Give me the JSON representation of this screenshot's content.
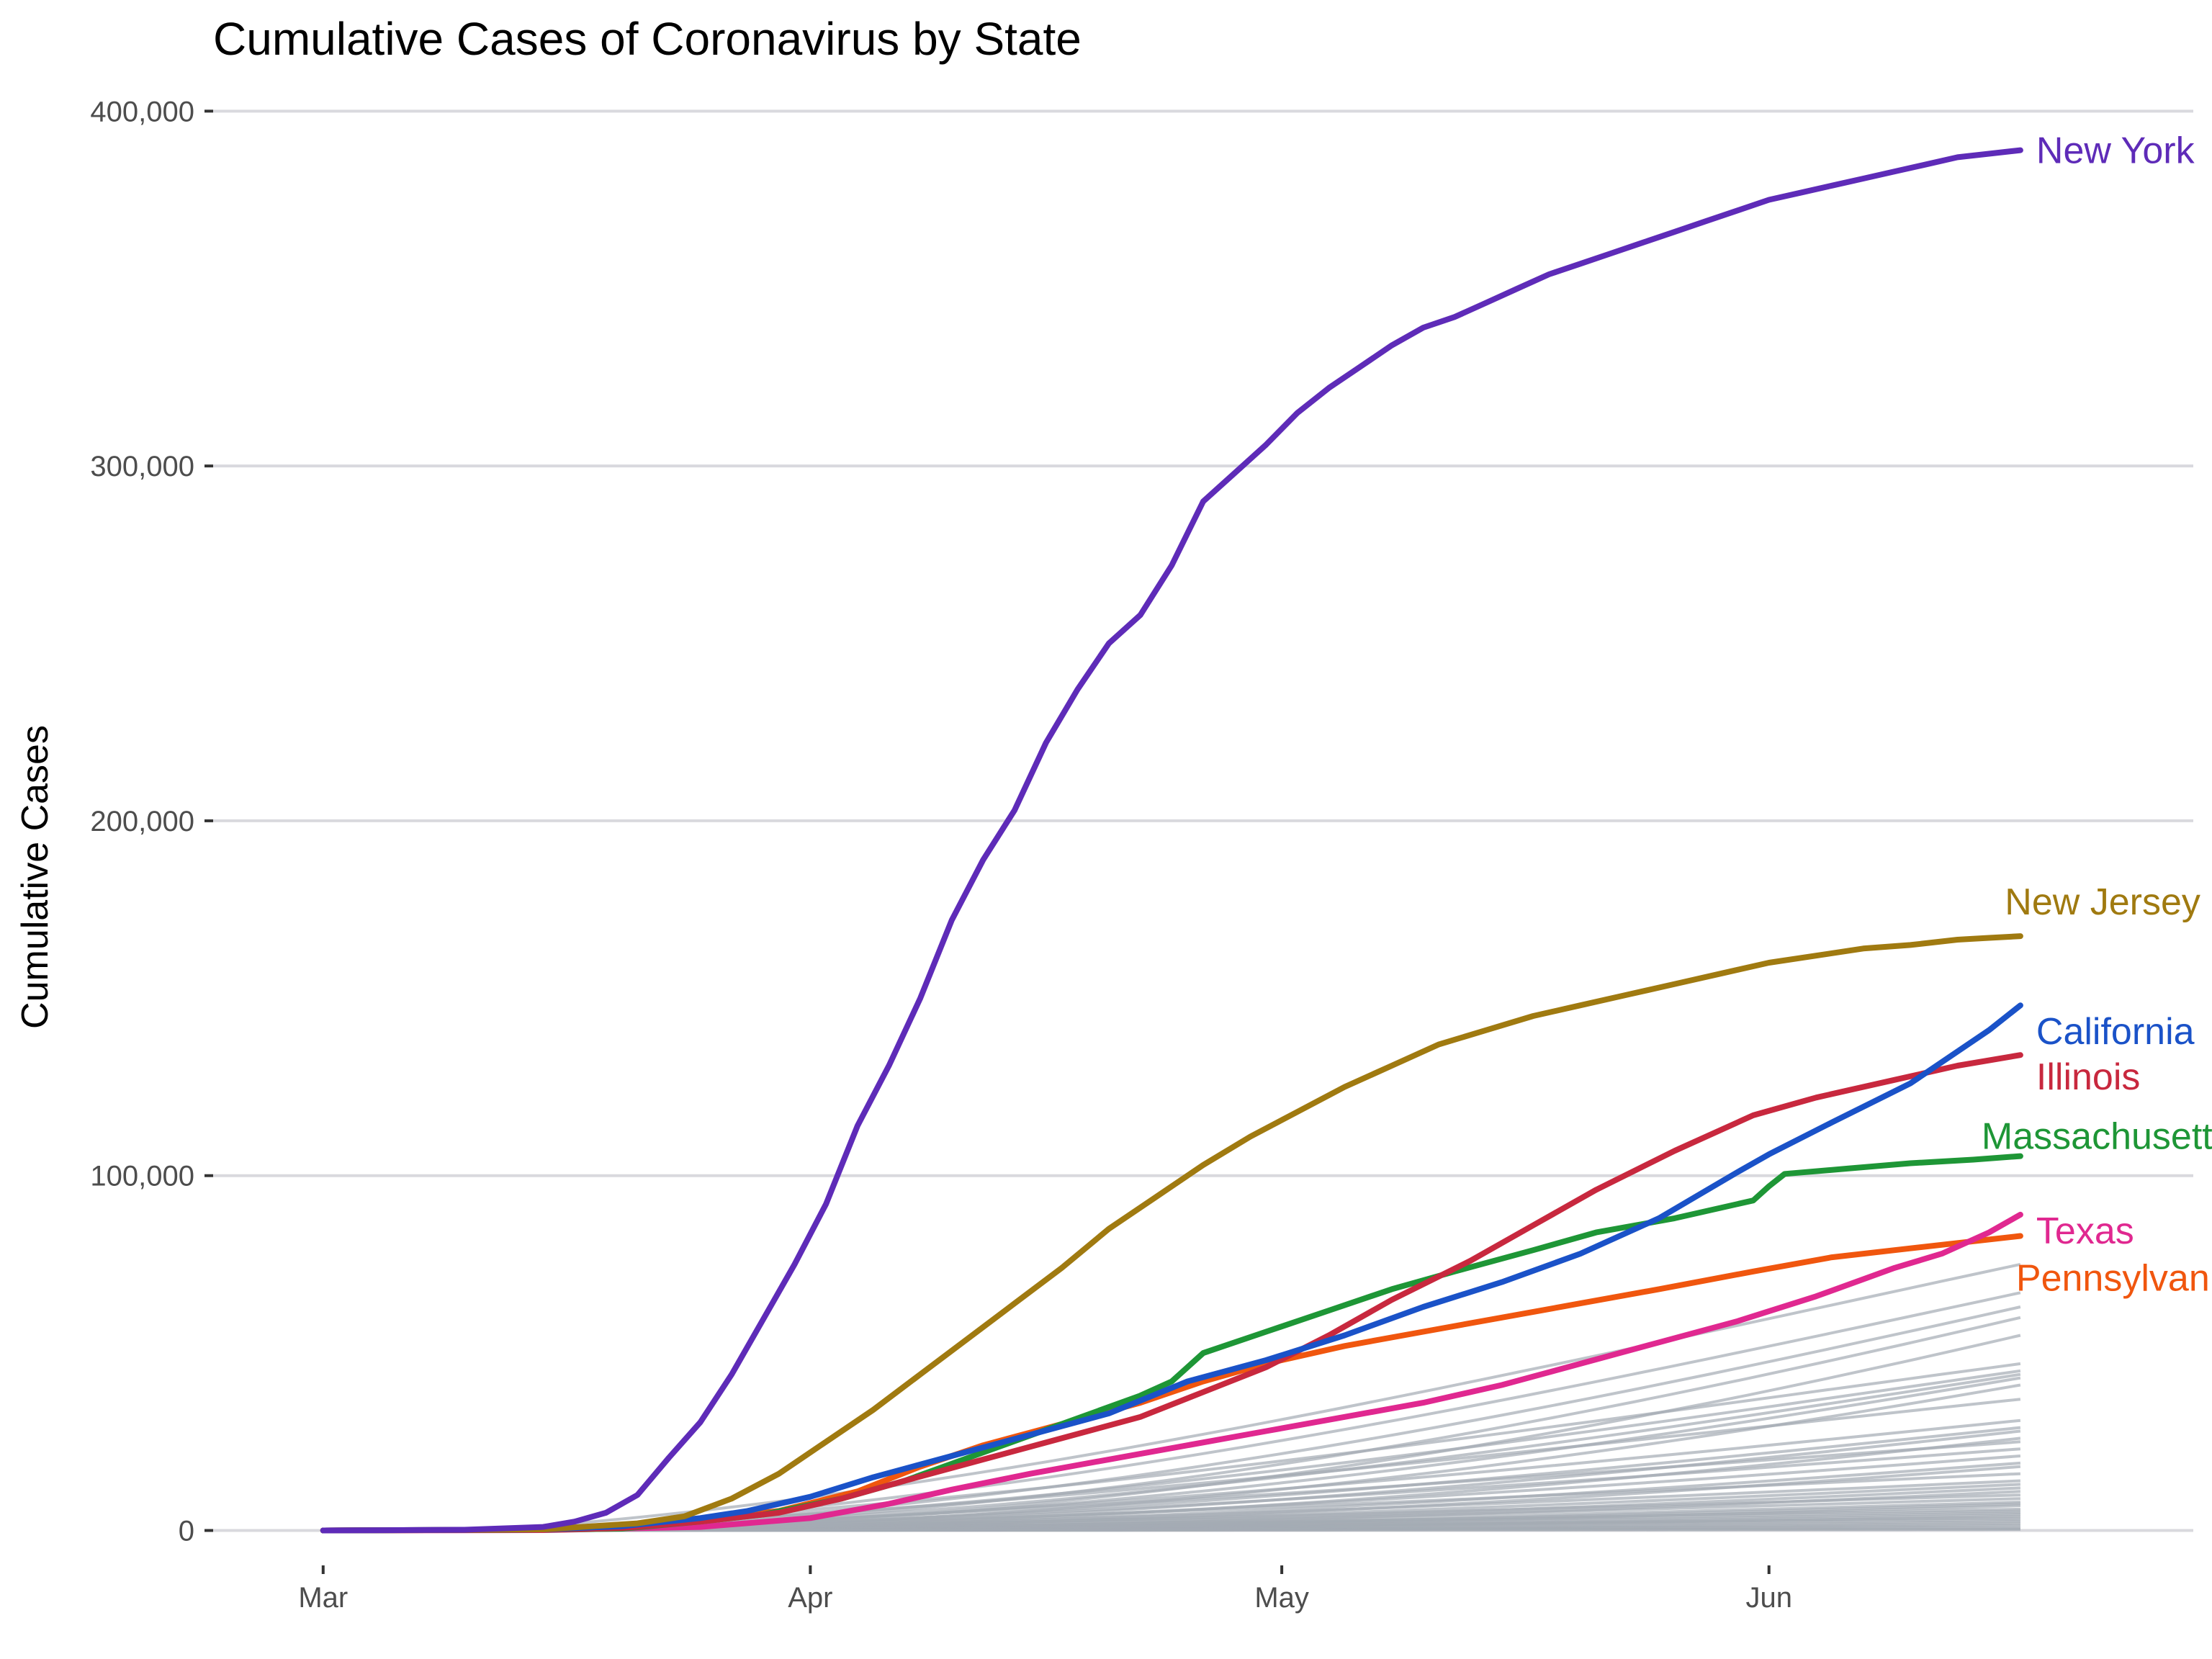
{
  "chart_data": {
    "type": "line",
    "title": "Cumulative Cases of Coronavirus by State",
    "xlabel": "",
    "ylabel": "Cumulative Cases",
    "x_axis": {
      "type": "date",
      "start": "2020-03-01",
      "end": "2020-06-28",
      "ticks": [
        {
          "date": "2020-03-01",
          "label": "Mar"
        },
        {
          "date": "2020-04-01",
          "label": "Apr"
        },
        {
          "date": "2020-05-01",
          "label": "May"
        },
        {
          "date": "2020-06-01",
          "label": "Jun"
        }
      ]
    },
    "y_axis": {
      "ylim": [
        -7000,
        409000
      ],
      "ticks": [
        {
          "value": 0,
          "label": "0"
        },
        {
          "value": 100000,
          "label": "100,000"
        },
        {
          "value": 200000,
          "label": "200,000"
        },
        {
          "value": 300000,
          "label": "300,000"
        },
        {
          "value": 400000,
          "label": "400,000"
        }
      ]
    },
    "grid": "horizontal",
    "legend": "none (direct labels at line ends)",
    "series": [
      {
        "name": "New York",
        "color": "#5e2bb8",
        "points": [
          [
            "2020-03-01",
            0
          ],
          [
            "2020-03-10",
            200
          ],
          [
            "2020-03-15",
            1000
          ],
          [
            "2020-03-17",
            2500
          ],
          [
            "2020-03-19",
            5000
          ],
          [
            "2020-03-21",
            10000
          ],
          [
            "2020-03-23",
            20500
          ],
          [
            "2020-03-25",
            30500
          ],
          [
            "2020-03-27",
            44000
          ],
          [
            "2020-03-29",
            59500
          ],
          [
            "2020-03-31",
            75000
          ],
          [
            "2020-04-02",
            92000
          ],
          [
            "2020-04-04",
            114000
          ],
          [
            "2020-04-06",
            131000
          ],
          [
            "2020-04-08",
            150000
          ],
          [
            "2020-04-10",
            172000
          ],
          [
            "2020-04-12",
            189000
          ],
          [
            "2020-04-14",
            203000
          ],
          [
            "2020-04-16",
            222000
          ],
          [
            "2020-04-18",
            237000
          ],
          [
            "2020-04-20",
            250000
          ],
          [
            "2020-04-22",
            258000
          ],
          [
            "2020-04-24",
            272000
          ],
          [
            "2020-04-26",
            290000
          ],
          [
            "2020-04-28",
            298000
          ],
          [
            "2020-04-30",
            306000
          ],
          [
            "2020-05-02",
            315000
          ],
          [
            "2020-05-04",
            322000
          ],
          [
            "2020-05-06",
            328000
          ],
          [
            "2020-05-08",
            334000
          ],
          [
            "2020-05-10",
            339000
          ],
          [
            "2020-05-12",
            342000
          ],
          [
            "2020-05-14",
            346000
          ],
          [
            "2020-05-16",
            350000
          ],
          [
            "2020-05-18",
            354000
          ],
          [
            "2020-05-20",
            357000
          ],
          [
            "2020-05-22",
            360000
          ],
          [
            "2020-05-24",
            363000
          ],
          [
            "2020-05-26",
            366000
          ],
          [
            "2020-05-28",
            369000
          ],
          [
            "2020-05-30",
            372000
          ],
          [
            "2020-06-01",
            375000
          ],
          [
            "2020-06-03",
            377000
          ],
          [
            "2020-06-05",
            379000
          ],
          [
            "2020-06-07",
            381000
          ],
          [
            "2020-06-09",
            383000
          ],
          [
            "2020-06-11",
            385000
          ],
          [
            "2020-06-13",
            387000
          ],
          [
            "2020-06-15",
            388000
          ],
          [
            "2020-06-17",
            389000
          ]
        ]
      },
      {
        "name": "New Jersey",
        "color": "#a07a10",
        "points": [
          [
            "2020-03-01",
            0
          ],
          [
            "2020-03-15",
            300
          ],
          [
            "2020-03-21",
            2000
          ],
          [
            "2020-03-24",
            4000
          ],
          [
            "2020-03-27",
            9000
          ],
          [
            "2020-03-30",
            16000
          ],
          [
            "2020-04-02",
            25000
          ],
          [
            "2020-04-05",
            34000
          ],
          [
            "2020-04-08",
            44000
          ],
          [
            "2020-04-11",
            54000
          ],
          [
            "2020-04-14",
            64000
          ],
          [
            "2020-04-17",
            74000
          ],
          [
            "2020-04-20",
            85000
          ],
          [
            "2020-04-23",
            94000
          ],
          [
            "2020-04-26",
            103000
          ],
          [
            "2020-04-29",
            111000
          ],
          [
            "2020-05-02",
            118000
          ],
          [
            "2020-05-05",
            125000
          ],
          [
            "2020-05-08",
            131000
          ],
          [
            "2020-05-11",
            137000
          ],
          [
            "2020-05-14",
            141000
          ],
          [
            "2020-05-17",
            145000
          ],
          [
            "2020-05-20",
            148000
          ],
          [
            "2020-05-23",
            151000
          ],
          [
            "2020-05-26",
            154000
          ],
          [
            "2020-05-29",
            157000
          ],
          [
            "2020-06-01",
            160000
          ],
          [
            "2020-06-04",
            162000
          ],
          [
            "2020-06-07",
            164000
          ],
          [
            "2020-06-10",
            165000
          ],
          [
            "2020-06-13",
            166500
          ],
          [
            "2020-06-15",
            167000
          ],
          [
            "2020-06-17",
            167500
          ]
        ]
      },
      {
        "name": "California",
        "color": "#1a52c8",
        "points": [
          [
            "2020-03-01",
            0
          ],
          [
            "2020-03-15",
            300
          ],
          [
            "2020-03-20",
            1200
          ],
          [
            "2020-03-25",
            3500
          ],
          [
            "2020-03-28",
            5500
          ],
          [
            "2020-04-01",
            9500
          ],
          [
            "2020-04-05",
            15000
          ],
          [
            "2020-04-10",
            21000
          ],
          [
            "2020-04-15",
            27000
          ],
          [
            "2020-04-20",
            33000
          ],
          [
            "2020-04-25",
            42000
          ],
          [
            "2020-04-30",
            48000
          ],
          [
            "2020-05-05",
            55000
          ],
          [
            "2020-05-10",
            63000
          ],
          [
            "2020-05-15",
            70000
          ],
          [
            "2020-05-20",
            78000
          ],
          [
            "2020-05-25",
            88000
          ],
          [
            "2020-05-30",
            101000
          ],
          [
            "2020-06-01",
            106000
          ],
          [
            "2020-06-05",
            115000
          ],
          [
            "2020-06-10",
            126000
          ],
          [
            "2020-06-15",
            141000
          ],
          [
            "2020-06-17",
            148000
          ]
        ]
      },
      {
        "name": "Illinois",
        "color": "#c8283e",
        "points": [
          [
            "2020-03-01",
            0
          ],
          [
            "2020-03-15",
            200
          ],
          [
            "2020-03-20",
            700
          ],
          [
            "2020-03-25",
            2500
          ],
          [
            "2020-03-30",
            5000
          ],
          [
            "2020-04-03",
            9000
          ],
          [
            "2020-04-07",
            14000
          ],
          [
            "2020-04-12",
            20000
          ],
          [
            "2020-04-17",
            26000
          ],
          [
            "2020-04-22",
            32000
          ],
          [
            "2020-04-26",
            39000
          ],
          [
            "2020-04-30",
            46000
          ],
          [
            "2020-05-04",
            55000
          ],
          [
            "2020-05-08",
            65000
          ],
          [
            "2020-05-13",
            76000
          ],
          [
            "2020-05-17",
            86000
          ],
          [
            "2020-05-21",
            96000
          ],
          [
            "2020-05-26",
            107000
          ],
          [
            "2020-05-31",
            117000
          ],
          [
            "2020-06-04",
            122000
          ],
          [
            "2020-06-09",
            127000
          ],
          [
            "2020-06-13",
            131000
          ],
          [
            "2020-06-17",
            134000
          ]
        ]
      },
      {
        "name": "Massachusetts",
        "color": "#1e9636",
        "points": [
          [
            "2020-03-01",
            0
          ],
          [
            "2020-03-15",
            200
          ],
          [
            "2020-03-20",
            500
          ],
          [
            "2020-03-25",
            2500
          ],
          [
            "2020-03-29",
            4500
          ],
          [
            "2020-04-03",
            9000
          ],
          [
            "2020-04-07",
            14000
          ],
          [
            "2020-04-12",
            22000
          ],
          [
            "2020-04-17",
            30000
          ],
          [
            "2020-04-22",
            38000
          ],
          [
            "2020-04-24",
            42000
          ],
          [
            "2020-04-26",
            50000
          ],
          [
            "2020-04-30",
            56000
          ],
          [
            "2020-05-04",
            62000
          ],
          [
            "2020-05-08",
            68000
          ],
          [
            "2020-05-12",
            73000
          ],
          [
            "2020-05-17",
            79000
          ],
          [
            "2020-05-21",
            84000
          ],
          [
            "2020-05-26",
            88000
          ],
          [
            "2020-05-31",
            93000
          ],
          [
            "2020-06-01",
            97000
          ],
          [
            "2020-06-02",
            100500
          ],
          [
            "2020-06-06",
            102000
          ],
          [
            "2020-06-10",
            103500
          ],
          [
            "2020-06-14",
            104500
          ],
          [
            "2020-06-17",
            105500
          ]
        ]
      },
      {
        "name": "Texas",
        "color": "#e02890",
        "points": [
          [
            "2020-03-01",
            0
          ],
          [
            "2020-03-15",
            100
          ],
          [
            "2020-03-25",
            1000
          ],
          [
            "2020-04-01",
            3500
          ],
          [
            "2020-04-06",
            7500
          ],
          [
            "2020-04-10",
            11500
          ],
          [
            "2020-04-15",
            16000
          ],
          [
            "2020-04-20",
            20000
          ],
          [
            "2020-04-25",
            24000
          ],
          [
            "2020-04-30",
            28000
          ],
          [
            "2020-05-05",
            32000
          ],
          [
            "2020-05-10",
            36000
          ],
          [
            "2020-05-15",
            41000
          ],
          [
            "2020-05-20",
            47000
          ],
          [
            "2020-05-25",
            53000
          ],
          [
            "2020-05-30",
            59000
          ],
          [
            "2020-06-04",
            66000
          ],
          [
            "2020-06-09",
            74000
          ],
          [
            "2020-06-12",
            78000
          ],
          [
            "2020-06-15",
            84000
          ],
          [
            "2020-06-17",
            89000
          ]
        ]
      },
      {
        "name": "Pennsylvania",
        "color": "#f0560e",
        "points": [
          [
            "2020-03-01",
            0
          ],
          [
            "2020-03-15",
            200
          ],
          [
            "2020-03-20",
            700
          ],
          [
            "2020-03-25",
            3000
          ],
          [
            "2020-03-30",
            5500
          ],
          [
            "2020-04-04",
            11000
          ],
          [
            "2020-04-08",
            18000
          ],
          [
            "2020-04-12",
            24000
          ],
          [
            "2020-04-17",
            30000
          ],
          [
            "2020-04-22",
            36000
          ],
          [
            "2020-04-26",
            42000
          ],
          [
            "2020-04-30",
            47000
          ],
          [
            "2020-05-05",
            52000
          ],
          [
            "2020-05-10",
            56000
          ],
          [
            "2020-05-15",
            60000
          ],
          [
            "2020-05-20",
            64000
          ],
          [
            "2020-05-25",
            68000
          ],
          [
            "2020-05-31",
            73000
          ],
          [
            "2020-06-05",
            77000
          ],
          [
            "2020-06-10",
            79500
          ],
          [
            "2020-06-17",
            83000
          ]
        ]
      }
    ],
    "other_states": {
      "color": "#a4abb3",
      "start": "2020-03-10",
      "end": "2020-06-17",
      "final_values": [
        75000,
        67000,
        63000,
        60000,
        55000,
        47000,
        45000,
        44000,
        43000,
        41000,
        37000,
        31000,
        29000,
        28000,
        26000,
        25000,
        23000,
        21000,
        19000,
        18000,
        16000,
        14000,
        13000,
        12000,
        11000,
        10000,
        9000,
        8000,
        7500,
        7000,
        6000,
        5500,
        5000,
        4500,
        4000,
        3500,
        3000,
        2500,
        2000,
        1500,
        1000,
        500,
        300
      ]
    }
  }
}
